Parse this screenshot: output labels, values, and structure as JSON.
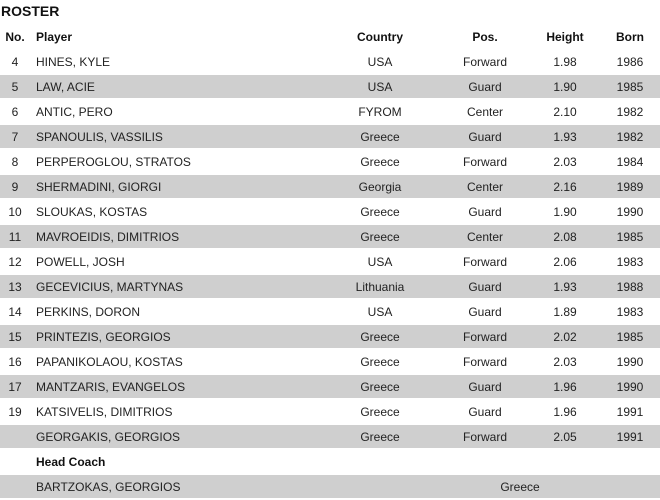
{
  "title": "ROSTER",
  "headers": {
    "no": "No.",
    "player": "Player",
    "country": "Country",
    "pos": "Pos.",
    "height": "Height",
    "born": "Born"
  },
  "players": [
    {
      "no": "4",
      "name": "HINES, KYLE",
      "country": "USA",
      "pos": "Forward",
      "height": "1.98",
      "born": "1986"
    },
    {
      "no": "5",
      "name": "LAW, ACIE",
      "country": "USA",
      "pos": "Guard",
      "height": "1.90",
      "born": "1985"
    },
    {
      "no": "6",
      "name": "ANTIC, PERO",
      "country": "FYROM",
      "pos": "Center",
      "height": "2.10",
      "born": "1982"
    },
    {
      "no": "7",
      "name": "SPANOULIS, VASSILIS",
      "country": "Greece",
      "pos": "Guard",
      "height": "1.93",
      "born": "1982"
    },
    {
      "no": "8",
      "name": "PERPEROGLOU, STRATOS",
      "country": "Greece",
      "pos": "Forward",
      "height": "2.03",
      "born": "1984"
    },
    {
      "no": "9",
      "name": "SHERMADINI, GIORGI",
      "country": "Georgia",
      "pos": "Center",
      "height": "2.16",
      "born": "1989"
    },
    {
      "no": "10",
      "name": "SLOUKAS, KOSTAS",
      "country": "Greece",
      "pos": "Guard",
      "height": "1.90",
      "born": "1990"
    },
    {
      "no": "11",
      "name": "MAVROEIDIS, DIMITRIOS",
      "country": "Greece",
      "pos": "Center",
      "height": "2.08",
      "born": "1985"
    },
    {
      "no": "12",
      "name": "POWELL, JOSH",
      "country": "USA",
      "pos": "Forward",
      "height": "2.06",
      "born": "1983"
    },
    {
      "no": "13",
      "name": "GECEVICIUS, MARTYNAS",
      "country": "Lithuania",
      "pos": "Guard",
      "height": "1.93",
      "born": "1988"
    },
    {
      "no": "14",
      "name": "PERKINS, DORON",
      "country": "USA",
      "pos": "Guard",
      "height": "1.89",
      "born": "1983"
    },
    {
      "no": "15",
      "name": "PRINTEZIS, GEORGIOS",
      "country": "Greece",
      "pos": "Forward",
      "height": "2.02",
      "born": "1985"
    },
    {
      "no": "16",
      "name": "PAPANIKOLAOU, KOSTAS",
      "country": "Greece",
      "pos": "Forward",
      "height": "2.03",
      "born": "1990"
    },
    {
      "no": "17",
      "name": "MANTZARIS, EVANGELOS",
      "country": "Greece",
      "pos": "Guard",
      "height": "1.96",
      "born": "1990"
    },
    {
      "no": "19",
      "name": "KATSIVELIS, DIMITRIOS",
      "country": "Greece",
      "pos": "Guard",
      "height": "1.96",
      "born": "1991"
    },
    {
      "no": "",
      "name": "GEORGAKIS, GEORGIOS",
      "country": "Greece",
      "pos": "Forward",
      "height": "2.05",
      "born": "1991"
    }
  ],
  "coach": {
    "label": "Head Coach",
    "name": "BARTZOKAS, GEORGIOS",
    "country": "Greece"
  }
}
